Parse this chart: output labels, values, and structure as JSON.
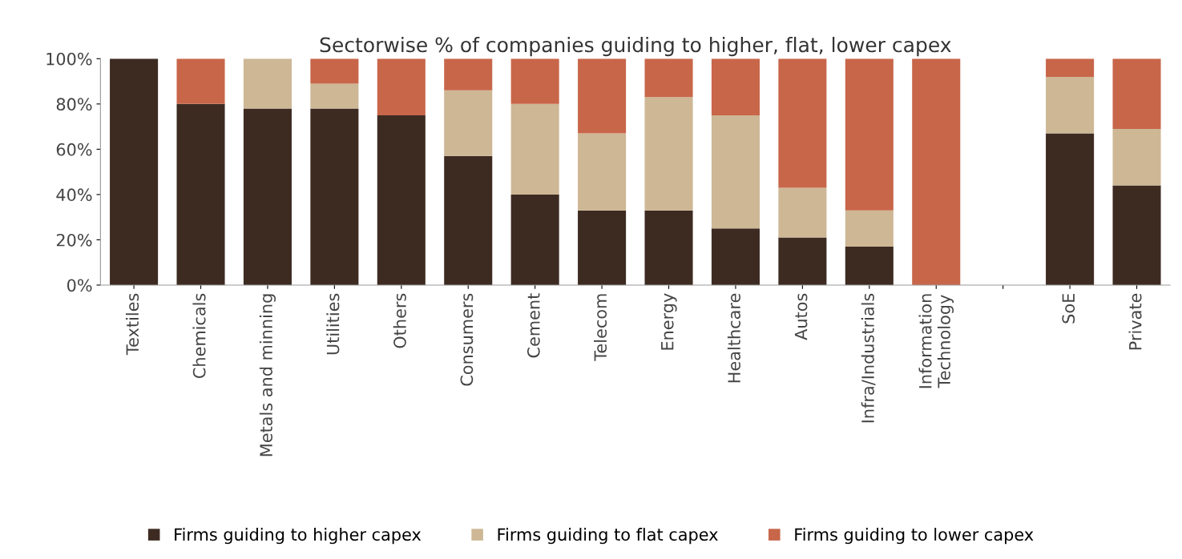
{
  "chart_data": {
    "type": "bar",
    "stacked": true,
    "title": "Sectorwise % of companies guiding to higher, flat, lower capex",
    "categories": [
      "Textiles",
      "Chemicals",
      "Metals and minning",
      "Utilities",
      "Others",
      "Consumers",
      "Cement",
      "Telecom",
      "Energy",
      "Healthcare",
      "Autos",
      "Infra/Industrials",
      "Information\nTechnology",
      null,
      "SoE",
      "Private"
    ],
    "series": [
      {
        "name": "Firms guiding to higher capex",
        "color": "#3d2b22",
        "values": [
          100,
          80,
          78,
          78,
          75,
          57,
          40,
          33,
          33,
          25,
          21,
          17,
          0,
          null,
          67,
          44
        ]
      },
      {
        "name": "Firms guiding to flat capex",
        "color": "#cdb795",
        "values": [
          0,
          0,
          22,
          11,
          0,
          29,
          40,
          34,
          50,
          50,
          22,
          16,
          0,
          null,
          25,
          25
        ]
      },
      {
        "name": "Firms guiding to lower capex",
        "color": "#c8664a",
        "values": [
          0,
          20,
          0,
          11,
          25,
          14,
          20,
          33,
          17,
          25,
          57,
          67,
          100,
          null,
          8,
          31
        ]
      }
    ],
    "ylim": [
      0,
      100
    ],
    "yticks": [
      {
        "value": 0,
        "label": "0%"
      },
      {
        "value": 20,
        "label": "20%"
      },
      {
        "value": 40,
        "label": "40%"
      },
      {
        "value": 60,
        "label": "60%"
      },
      {
        "value": 80,
        "label": "80%"
      },
      {
        "value": 100,
        "label": "100%"
      }
    ],
    "grid": false,
    "legend": "bottom"
  }
}
